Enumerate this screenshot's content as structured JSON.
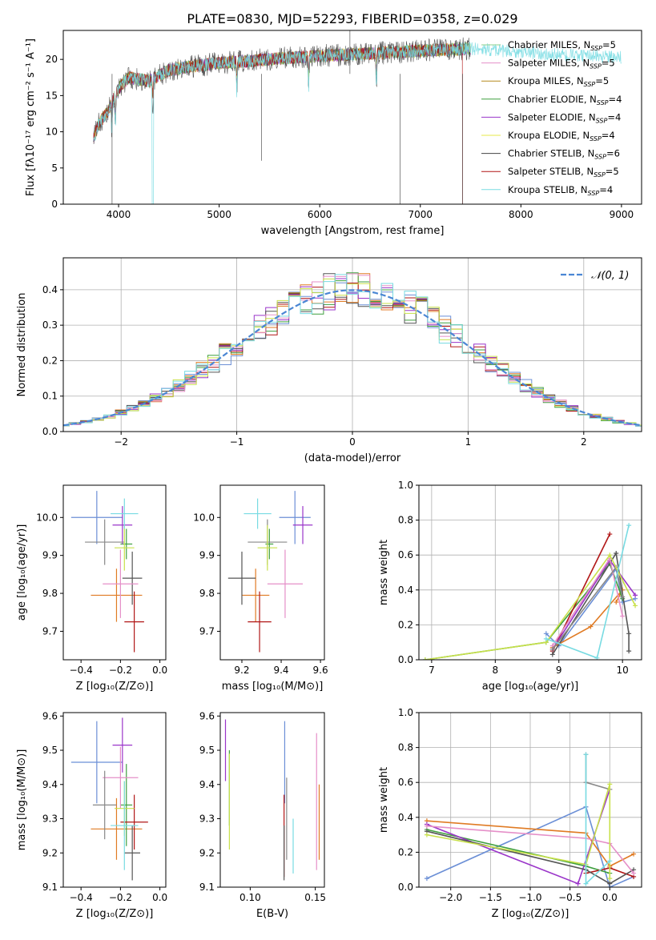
{
  "title": "PLATE=0830, MJD=52293, FIBERID=0358, z=0.029",
  "colors": [
    "#8fd18f",
    "#e58fc8",
    "#b58a1f",
    "#3f9f3f",
    "#9a35c9",
    "#e7e84a",
    "#444444",
    "#b11717",
    "#78dbe2"
  ],
  "panel_colors": [
    "#6b8fd6",
    "#e07b24",
    "#3f9f3f",
    "#b11717",
    "#9a35c9",
    "#555555",
    "#e58fc8",
    "#888888",
    "#c8e04a",
    "#78dbe2"
  ],
  "chart_data": [
    {
      "id": "spectrum",
      "type": "line",
      "xlabel": "wavelength [Angstrom, rest frame]",
      "ylabel": "Flux [fλ10⁻¹⁷ erg cm⁻² s⁻¹ A⁻¹]",
      "xlim": [
        3450,
        9200
      ],
      "ylim": [
        0,
        24
      ],
      "xticks": [
        4000,
        5000,
        6000,
        7000,
        8000,
        9000
      ],
      "yticks": [
        0,
        5,
        10,
        15,
        20
      ],
      "xticklabels": [
        "4000",
        "5000",
        "6000",
        "7000",
        "8000",
        "9000"
      ],
      "yticklabels": [
        "0",
        "5",
        "10",
        "15",
        "20"
      ],
      "continuum": [
        [
          3750,
          9
        ],
        [
          3800,
          11
        ],
        [
          3900,
          13
        ],
        [
          4000,
          16
        ],
        [
          4100,
          17.5
        ],
        [
          4300,
          17
        ],
        [
          4500,
          18.5
        ],
        [
          4700,
          19
        ],
        [
          5000,
          19.5
        ],
        [
          5500,
          20
        ],
        [
          6000,
          20.5
        ],
        [
          6500,
          20.8
        ],
        [
          7000,
          21.2
        ],
        [
          7500,
          21.5
        ],
        [
          7800,
          21.2
        ],
        [
          8200,
          20.8
        ],
        [
          8600,
          20.5
        ],
        [
          9000,
          20.3
        ]
      ],
      "absorption_lines": [
        3933,
        3968,
        4340,
        5175,
        5890,
        6563
      ],
      "legend": [
        {
          "label": "Chabrier MILES, N",
          "sub": "SSP",
          "suffix": "=5"
        },
        {
          "label": "Salpeter MILES, N",
          "sub": "SSP",
          "suffix": "=5"
        },
        {
          "label": "Kroupa MILES, N",
          "sub": "SSP",
          "suffix": "=5"
        },
        {
          "label": "Chabrier ELODIE, N",
          "sub": "SSP",
          "suffix": "=4"
        },
        {
          "label": "Salpeter ELODIE, N",
          "sub": "SSP",
          "suffix": "=4"
        },
        {
          "label": "Kroupa ELODIE, N",
          "sub": "SSP",
          "suffix": "=4"
        },
        {
          "label": "Chabrier STELIB, N",
          "sub": "SSP",
          "suffix": "=6"
        },
        {
          "label": "Salpeter STELIB, N",
          "sub": "SSP",
          "suffix": "=5"
        },
        {
          "label": "Kroupa STELIB, N",
          "sub": "SSP",
          "suffix": "=4"
        }
      ]
    },
    {
      "id": "residuals",
      "type": "line",
      "xlabel": "(data-model)/error",
      "ylabel": "Normed distribution",
      "xlim": [
        -2.5,
        2.5
      ],
      "ylim": [
        0,
        0.49
      ],
      "xticks": [
        -2,
        -1,
        0,
        1,
        2
      ],
      "yticks": [
        0,
        0.1,
        0.2,
        0.3,
        0.4
      ],
      "xticklabels": [
        "−2",
        "−1",
        "0",
        "1",
        "2"
      ],
      "yticklabels": [
        "0.0",
        "0.1",
        "0.2",
        "0.3",
        "0.4"
      ],
      "grid": true,
      "legend": "𝒩(0, 1)",
      "bin_width": 0.1
    },
    {
      "id": "age-vs-Z",
      "type": "scatter",
      "xlabel": "Z [log₁₀(Z/Z⊙)]",
      "ylabel": "age  [log₁₀(age/yr)]",
      "xlim": [
        -0.49,
        0.03
      ],
      "ylim": [
        9.625,
        10.085
      ],
      "xticks": [
        -0.4,
        -0.2,
        0.0
      ],
      "yticks": [
        9.7,
        9.8,
        9.9,
        10.0
      ],
      "xticklabels": [
        "−0.4",
        "−0.2",
        "0.0"
      ],
      "yticklabels": [
        "9.7",
        "9.8",
        "9.9",
        "10.0"
      ],
      "points": [
        {
          "x": -0.32,
          "y": 10.0,
          "xerr": 0.13,
          "yerr": 0.07
        },
        {
          "x": -0.22,
          "y": 9.795,
          "xerr": 0.13,
          "yerr": 0.07
        },
        {
          "x": -0.17,
          "y": 9.93,
          "xerr": 0.03,
          "yerr": 0.04
        },
        {
          "x": -0.13,
          "y": 9.725,
          "xerr": 0.05,
          "yerr": 0.08
        },
        {
          "x": -0.19,
          "y": 9.98,
          "xerr": 0.05,
          "yerr": 0.05
        },
        {
          "x": -0.14,
          "y": 9.84,
          "xerr": 0.05,
          "yerr": 0.07
        },
        {
          "x": -0.2,
          "y": 9.825,
          "xerr": 0.09,
          "yerr": 0.09
        },
        {
          "x": -0.28,
          "y": 9.935,
          "xerr": 0.1,
          "yerr": 0.06
        },
        {
          "x": -0.18,
          "y": 9.92,
          "xerr": 0.05,
          "yerr": 0.06
        },
        {
          "x": -0.18,
          "y": 10.01,
          "xerr": 0.07,
          "yerr": 0.04
        }
      ]
    },
    {
      "id": "age-vs-mass",
      "type": "scatter",
      "xlabel": "mass [log₁₀(M/M⊙)]",
      "ylabel": "",
      "xlim": [
        9.09,
        9.62
      ],
      "ylim": [
        9.625,
        10.085
      ],
      "xticks": [
        9.2,
        9.4,
        9.6
      ],
      "yticks": [
        9.7,
        9.8,
        9.9,
        10.0
      ],
      "xticklabels": [
        "9.2",
        "9.4",
        "9.6"
      ],
      "yticklabels": [
        "9.7",
        "9.8",
        "9.9",
        "10.0"
      ],
      "points": [
        {
          "x": 9.47,
          "y": 10.0,
          "xerr": 0.08,
          "yerr": 0.07
        },
        {
          "x": 9.27,
          "y": 9.795,
          "xerr": 0.07,
          "yerr": 0.07
        },
        {
          "x": 9.34,
          "y": 9.93,
          "xerr": 0.02,
          "yerr": 0.04
        },
        {
          "x": 9.29,
          "y": 9.725,
          "xerr": 0.06,
          "yerr": 0.08
        },
        {
          "x": 9.51,
          "y": 9.98,
          "xerr": 0.05,
          "yerr": 0.05
        },
        {
          "x": 9.2,
          "y": 9.84,
          "xerr": 0.07,
          "yerr": 0.07
        },
        {
          "x": 9.42,
          "y": 9.825,
          "xerr": 0.09,
          "yerr": 0.09
        },
        {
          "x": 9.33,
          "y": 9.935,
          "xerr": 0.1,
          "yerr": 0.06
        },
        {
          "x": 9.33,
          "y": 9.92,
          "xerr": 0.05,
          "yerr": 0.06
        },
        {
          "x": 9.28,
          "y": 10.01,
          "xerr": 0.07,
          "yerr": 0.04
        }
      ]
    },
    {
      "id": "weight-vs-age",
      "type": "line",
      "xlabel": "age  [log₁₀(age/yr)]",
      "ylabel": "mass weight",
      "xlim": [
        6.8,
        10.3
      ],
      "ylim": [
        0,
        1.0
      ],
      "xticks": [
        7,
        8,
        9,
        10
      ],
      "yticks": [
        0,
        0.2,
        0.4,
        0.6,
        0.8,
        1.0
      ],
      "xticklabels": [
        "7",
        "8",
        "9",
        "10"
      ],
      "yticklabels": [
        "0.0",
        "0.2",
        "0.4",
        "0.6",
        "0.8",
        "1.0"
      ],
      "grid": true,
      "series": [
        {
          "values": [
            [
              8.8,
              0.15
            ],
            [
              9.0,
              0.08
            ],
            [
              9.9,
              0.52
            ],
            [
              10.0,
              0.33
            ],
            [
              10.2,
              0.35
            ]
          ]
        },
        {
          "values": [
            [
              8.9,
              0.07
            ],
            [
              9.5,
              0.19
            ],
            [
              10.0,
              0.4
            ],
            [
              9.9,
              0.33
            ]
          ]
        },
        {
          "values": [
            [
              6.9,
              0.0
            ],
            [
              8.8,
              0.1
            ],
            [
              9.8,
              0.55
            ],
            [
              10.0,
              0.35
            ]
          ]
        },
        {
          "values": [
            [
              8.9,
              0.05
            ],
            [
              9.8,
              0.72
            ]
          ]
        },
        {
          "values": [
            [
              8.9,
              0.06
            ],
            [
              9.8,
              0.57
            ],
            [
              10.2,
              0.37
            ]
          ]
        },
        {
          "values": [
            [
              8.9,
              0.03
            ],
            [
              9.9,
              0.61
            ],
            [
              10.1,
              0.15
            ],
            [
              10.1,
              0.05
            ]
          ]
        },
        {
          "values": [
            [
              8.9,
              0.08
            ],
            [
              9.8,
              0.58
            ],
            [
              10.0,
              0.25
            ]
          ]
        },
        {
          "values": [
            [
              8.9,
              0.06
            ],
            [
              9.9,
              0.53
            ],
            [
              10.0,
              0.36
            ]
          ]
        },
        {
          "values": [
            [
              6.9,
              0.0
            ],
            [
              8.8,
              0.1
            ],
            [
              9.8,
              0.6
            ],
            [
              10.2,
              0.31
            ]
          ]
        },
        {
          "values": [
            [
              8.8,
              0.12
            ],
            [
              9.6,
              0.01
            ],
            [
              10.1,
              0.77
            ]
          ]
        }
      ]
    },
    {
      "id": "mass-vs-Z",
      "type": "scatter",
      "xlabel": "Z [log₁₀(Z/Z⊙)]",
      "ylabel": "mass [log₁₀(M/M⊙)]",
      "xlim": [
        -0.49,
        0.03
      ],
      "ylim": [
        9.1,
        9.61
      ],
      "xticks": [
        -0.4,
        -0.2,
        0.0
      ],
      "yticks": [
        9.1,
        9.2,
        9.3,
        9.4,
        9.5,
        9.6
      ],
      "xticklabels": [
        "−0.4",
        "−0.2",
        "0.0"
      ],
      "yticklabels": [
        "9.1",
        "9.2",
        "9.3",
        "9.4",
        "9.5",
        "9.6"
      ],
      "points": [
        {
          "x": -0.32,
          "y": 9.465,
          "xerr": 0.13,
          "yerr": 0.12
        },
        {
          "x": -0.22,
          "y": 9.27,
          "xerr": 0.13,
          "yerr": 0.09
        },
        {
          "x": -0.17,
          "y": 9.34,
          "xerr": 0.03,
          "yerr": 0.12
        },
        {
          "x": -0.13,
          "y": 9.29,
          "xerr": 0.07,
          "yerr": 0.08
        },
        {
          "x": -0.19,
          "y": 9.515,
          "xerr": 0.05,
          "yerr": 0.08
        },
        {
          "x": -0.14,
          "y": 9.2,
          "xerr": 0.04,
          "yerr": 0.08
        },
        {
          "x": -0.2,
          "y": 9.42,
          "xerr": 0.09,
          "yerr": 0.09
        },
        {
          "x": -0.28,
          "y": 9.34,
          "xerr": 0.06,
          "yerr": 0.1
        },
        {
          "x": -0.18,
          "y": 9.33,
          "xerr": 0.05,
          "yerr": 0.08
        },
        {
          "x": -0.18,
          "y": 9.28,
          "xerr": 0.07,
          "yerr": 0.13
        }
      ]
    },
    {
      "id": "mass-vs-ebv",
      "type": "scatter",
      "xlabel": "E(B-V)",
      "ylabel": "",
      "xlim": [
        0.077,
        0.157
      ],
      "ylim": [
        9.1,
        9.61
      ],
      "xticks": [
        0.1,
        0.15
      ],
      "yticks": [
        9.1,
        9.2,
        9.3,
        9.4,
        9.5,
        9.6
      ],
      "xticklabels": [
        "0.10",
        "0.15"
      ],
      "yticklabels": [
        "9.1",
        "9.2",
        "9.3",
        "9.4",
        "9.5",
        "9.6"
      ],
      "points": [
        {
          "x": 0.1265,
          "y": 9.465,
          "xerr": 0.0,
          "yerr": 0.12
        },
        {
          "x": 0.153,
          "y": 9.29,
          "xerr": 0.0,
          "yerr": 0.11
        },
        {
          "x": 0.084,
          "y": 9.39,
          "xerr": 0.0,
          "yerr": 0.11
        },
        {
          "x": 0.126,
          "y": 9.25,
          "xerr": 0.0,
          "yerr": 0.12
        },
        {
          "x": 0.081,
          "y": 9.5,
          "xerr": 0.0,
          "yerr": 0.09
        },
        {
          "x": 0.126,
          "y": 9.2,
          "xerr": 0.0,
          "yerr": 0.08
        },
        {
          "x": 0.151,
          "y": 9.35,
          "xerr": 0.0,
          "yerr": 0.2
        },
        {
          "x": 0.128,
          "y": 9.3,
          "xerr": 0.0,
          "yerr": 0.12
        },
        {
          "x": 0.084,
          "y": 9.35,
          "xerr": 0.0,
          "yerr": 0.14
        },
        {
          "x": 0.133,
          "y": 9.22,
          "xerr": 0.0,
          "yerr": 0.08
        }
      ]
    },
    {
      "id": "weight-vs-Z",
      "type": "line",
      "xlabel": "Z [log₁₀(Z/Z⊙)]",
      "ylabel": "mass weight",
      "xlim": [
        -2.4,
        0.4
      ],
      "ylim": [
        0,
        1.0
      ],
      "xticks": [
        -2.0,
        -1.5,
        -1.0,
        -0.5,
        0.0
      ],
      "yticks": [
        0,
        0.2,
        0.4,
        0.6,
        0.8,
        1.0
      ],
      "xticklabels": [
        "−2.0",
        "−1.5",
        "−1.0",
        "−0.5",
        "0.0"
      ],
      "yticklabels": [
        "0.0",
        "0.2",
        "0.4",
        "0.6",
        "0.8",
        "1.0"
      ],
      "grid": true,
      "series": [
        {
          "values": [
            [
              -2.3,
              0.05
            ],
            [
              -0.3,
              0.46
            ],
            [
              0.0,
              0.0
            ],
            [
              0.3,
              0.06
            ]
          ]
        },
        {
          "values": [
            [
              -2.3,
              0.38
            ],
            [
              -0.3,
              0.31
            ],
            [
              0.0,
              0.12
            ],
            [
              0.3,
              0.19
            ]
          ]
        },
        {
          "values": [
            [
              -2.3,
              0.33
            ],
            [
              -0.3,
              0.12
            ],
            [
              0.0,
              0.08
            ]
          ]
        },
        {
          "values": [
            [
              -0.3,
              0.08
            ],
            [
              0.0,
              0.11
            ],
            [
              0.3,
              0.06
            ]
          ]
        },
        {
          "values": [
            [
              -2.3,
              0.36
            ],
            [
              -0.4,
              0.02
            ],
            [
              0.0,
              0.56
            ]
          ]
        },
        {
          "values": [
            [
              -2.3,
              0.32
            ],
            [
              -0.3,
              0.1
            ],
            [
              0.0,
              0.02
            ],
            [
              0.3,
              0.1
            ]
          ]
        },
        {
          "values": [
            [
              -2.3,
              0.35
            ],
            [
              -0.3,
              0.28
            ],
            [
              0.0,
              0.25
            ],
            [
              0.3,
              0.08
            ]
          ]
        },
        {
          "values": [
            [
              -0.3,
              0.76
            ],
            [
              -0.3,
              0.6
            ],
            [
              0.0,
              0.56
            ]
          ]
        },
        {
          "values": [
            [
              -2.3,
              0.3
            ],
            [
              -0.3,
              0.13
            ],
            [
              0.0,
              0.59
            ],
            [
              0.0,
              0.05
            ]
          ]
        },
        {
          "values": [
            [
              -0.3,
              0.76
            ],
            [
              -0.3,
              0.02
            ],
            [
              0.0,
              0.15
            ]
          ]
        }
      ]
    }
  ]
}
